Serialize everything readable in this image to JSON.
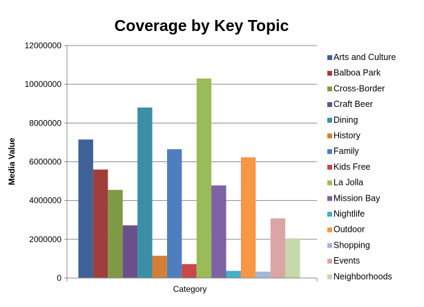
{
  "chart_data": {
    "type": "bar",
    "title": "Coverage by Key Topic",
    "xlabel": "Category",
    "ylabel": "Media Value",
    "ylim": [
      0,
      12000000
    ],
    "yticks": [
      0,
      2000000,
      4000000,
      6000000,
      8000000,
      10000000,
      12000000
    ],
    "ytick_labels": [
      "0",
      "2000000",
      "4000000",
      "6000000",
      "8000000",
      "10000000",
      "12000000"
    ],
    "grid": true,
    "legend_position": "right",
    "series": [
      {
        "name": "Arts and Culture",
        "value": 7150000,
        "color": "#3F6198"
      },
      {
        "name": "Balboa Park",
        "value": 5600000,
        "color": "#A03E3B"
      },
      {
        "name": "Cross-Border",
        "value": 4550000,
        "color": "#7E9A45"
      },
      {
        "name": "Craft Beer",
        "value": 2720000,
        "color": "#6B4F8B"
      },
      {
        "name": "Dining",
        "value": 8800000,
        "color": "#3A8FA7"
      },
      {
        "name": "History",
        "value": 1150000,
        "color": "#D57E36"
      },
      {
        "name": "Family",
        "value": 6650000,
        "color": "#4E7EC0"
      },
      {
        "name": "Kids Free",
        "value": 720000,
        "color": "#C8474A"
      },
      {
        "name": "La Jolla",
        "value": 10300000,
        "color": "#9BBB59"
      },
      {
        "name": "Mission Bay",
        "value": 4780000,
        "color": "#7D62A4"
      },
      {
        "name": "Nightlife",
        "value": 370000,
        "color": "#47ADC8"
      },
      {
        "name": "Outdoor",
        "value": 6230000,
        "color": "#F79646"
      },
      {
        "name": "Shopping",
        "value": 330000,
        "color": "#A5B6DB"
      },
      {
        "name": "Events",
        "value": 3080000,
        "color": "#D9A6A5"
      },
      {
        "name": "Neighborhoods",
        "value": 2050000,
        "color": "#C6D9A9"
      }
    ]
  }
}
